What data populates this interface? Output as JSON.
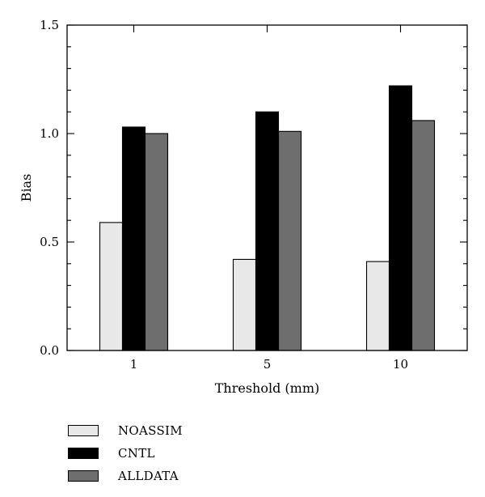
{
  "chart_data": {
    "type": "bar",
    "categories": [
      "1",
      "5",
      "10"
    ],
    "series": [
      {
        "name": "NOASSIM",
        "values": [
          0.59,
          0.42,
          0.41
        ],
        "color": "#e8e8e8"
      },
      {
        "name": "CNTL",
        "values": [
          1.03,
          1.1,
          1.22
        ],
        "color": "#000000"
      },
      {
        "name": "ALLDATA",
        "values": [
          1.0,
          1.01,
          1.06
        ],
        "color": "#6e6e6e"
      }
    ],
    "xlabel": "Threshold (mm)",
    "ylabel": "Bias",
    "ylim": [
      0,
      1.5
    ],
    "yticks": [
      "0.0",
      "0.5",
      "1.0",
      "1.5"
    ],
    "grid": false,
    "legend_position": "bottom-left"
  }
}
